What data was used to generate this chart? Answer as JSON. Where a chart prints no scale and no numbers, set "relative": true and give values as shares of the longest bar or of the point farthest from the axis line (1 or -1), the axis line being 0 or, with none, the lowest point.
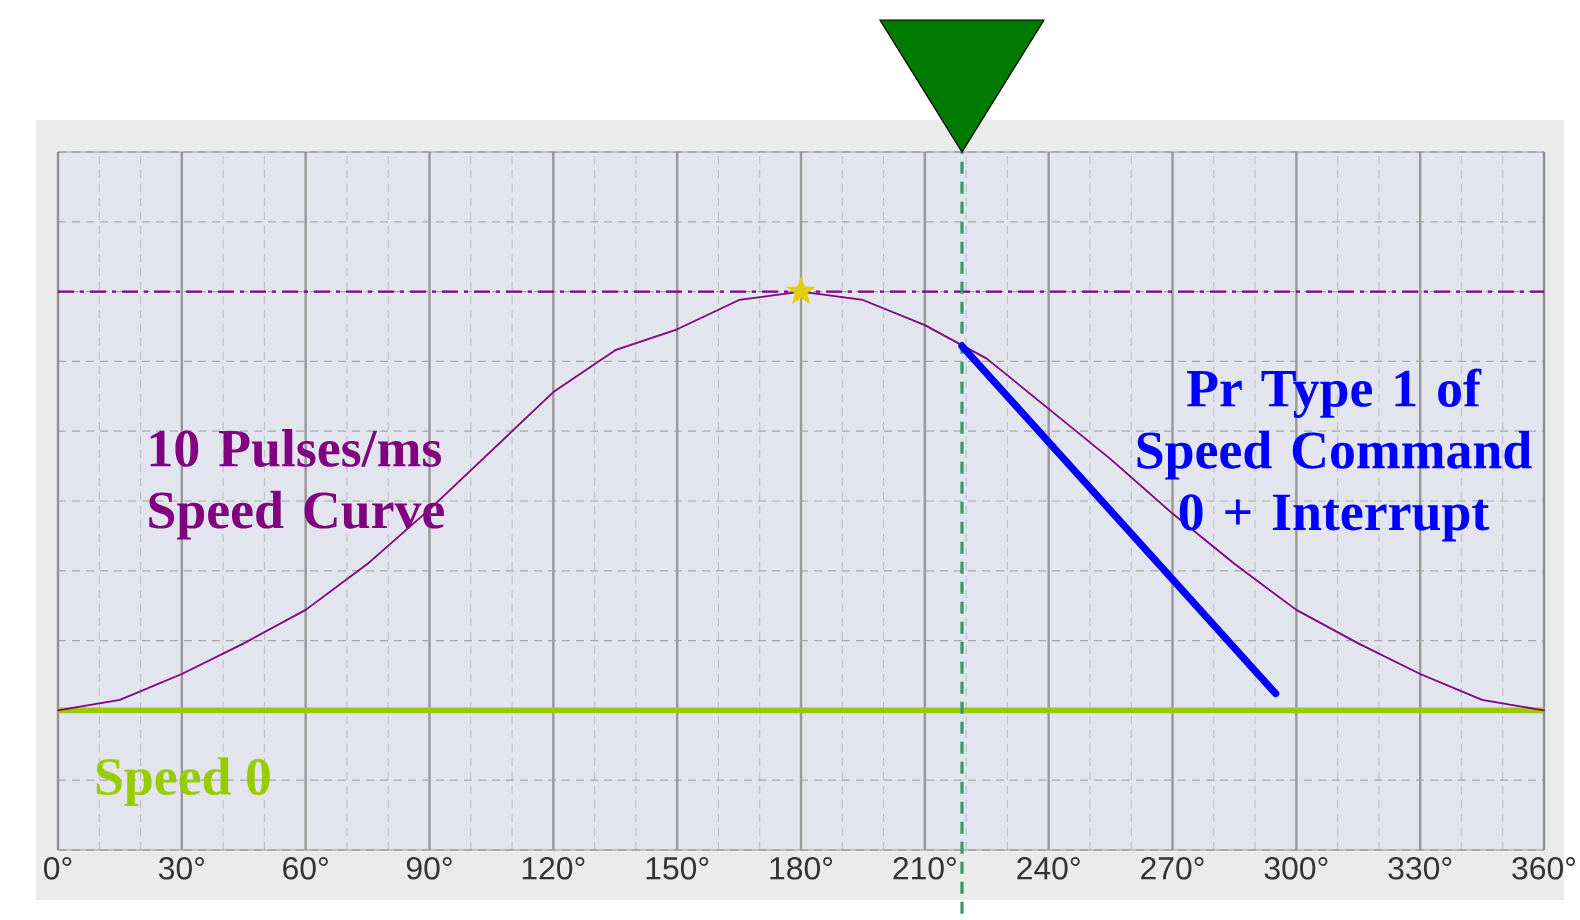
{
  "chart_data": {
    "type": "line",
    "relative": true,
    "xlim": [
      0,
      360
    ],
    "xticks": [
      {
        "value": 0,
        "label": "0°"
      },
      {
        "value": 30,
        "label": "30°"
      },
      {
        "value": 60,
        "label": "60°"
      },
      {
        "value": 90,
        "label": "90°"
      },
      {
        "value": 120,
        "label": "120°"
      },
      {
        "value": 150,
        "label": "150°"
      },
      {
        "value": 180,
        "label": "180°"
      },
      {
        "value": 210,
        "label": "210°"
      },
      {
        "value": 240,
        "label": "240°"
      },
      {
        "value": 270,
        "label": "270°"
      },
      {
        "value": 300,
        "label": "300°"
      },
      {
        "value": 330,
        "label": "330°"
      },
      {
        "value": 360,
        "label": "360°"
      }
    ],
    "grid": true,
    "marker": "none",
    "line_style": "solid",
    "series": [
      {
        "name": "10 Pulses/ms Speed Curve",
        "color": "#800080",
        "x": [
          0,
          15,
          30,
          45,
          60,
          75,
          90,
          105,
          120,
          135,
          150,
          165,
          180,
          195,
          210,
          225,
          240,
          255,
          270,
          285,
          300,
          315,
          330,
          345,
          360
        ],
        "values": [
          0,
          0.025,
          0.087,
          0.16,
          0.24,
          0.35,
          0.48,
          0.62,
          0.76,
          0.86,
          0.91,
          0.98,
          1,
          0.98,
          0.92,
          0.84,
          0.72,
          0.6,
          0.47,
          0.35,
          0.24,
          0.16,
          0.087,
          0.025,
          0
        ]
      },
      {
        "name": "Pr Type 1 of Speed Command 0 + Interrupt",
        "color": "#0000ff",
        "x": [
          219,
          295
        ],
        "values": [
          0.87,
          0.04
        ]
      },
      {
        "type": "scatter",
        "marker": "star",
        "color": "#e0d000",
        "x": [
          180
        ],
        "values": [
          1
        ]
      }
    ],
    "ref_lines": [
      {
        "axis": "y",
        "value": 0,
        "label": "Speed 0",
        "color": "#99cc00",
        "line_style": "solid"
      },
      {
        "axis": "y",
        "value": 1,
        "color": "#800080",
        "line_style": "dashdot"
      },
      {
        "axis": "x",
        "value": 219,
        "color": "#339966",
        "line_style": "dashed"
      }
    ]
  }
}
